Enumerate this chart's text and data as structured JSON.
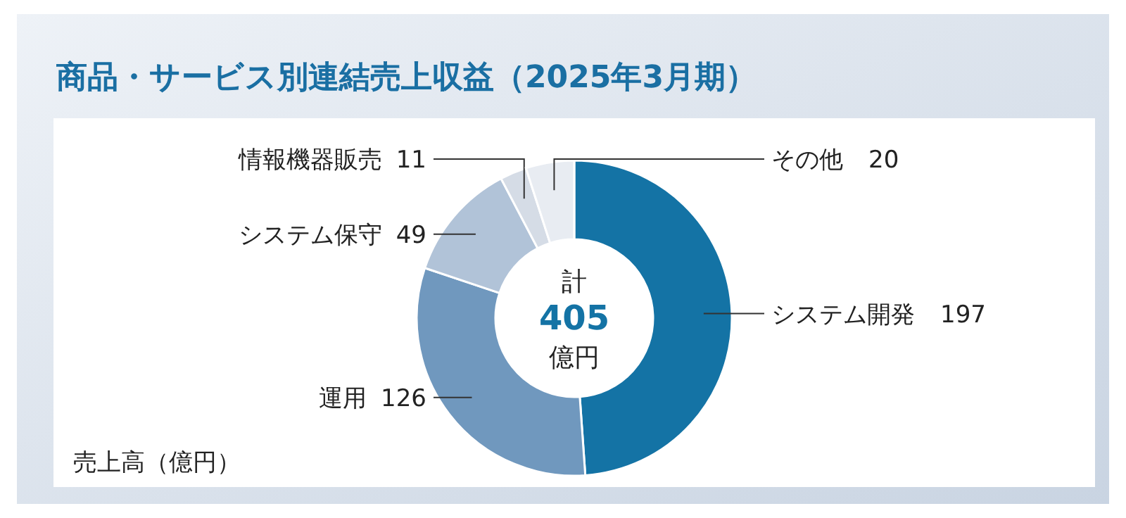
{
  "chart_data": {
    "type": "donut",
    "title": "商品・サービス別連結売上収益（2025年3月期）",
    "categories": [
      "システム開発",
      "運用",
      "システム保守",
      "情報機器販売",
      "その他"
    ],
    "values": [
      197,
      126,
      49,
      11,
      20
    ],
    "colors": [
      "#1473a5",
      "#7098be",
      "#b1c3d8",
      "#d5dce6",
      "#e8ecf2"
    ],
    "data_labels": true,
    "annotations": [
      "計",
      "405",
      "億円",
      "売上高（億円）"
    ]
  }
}
